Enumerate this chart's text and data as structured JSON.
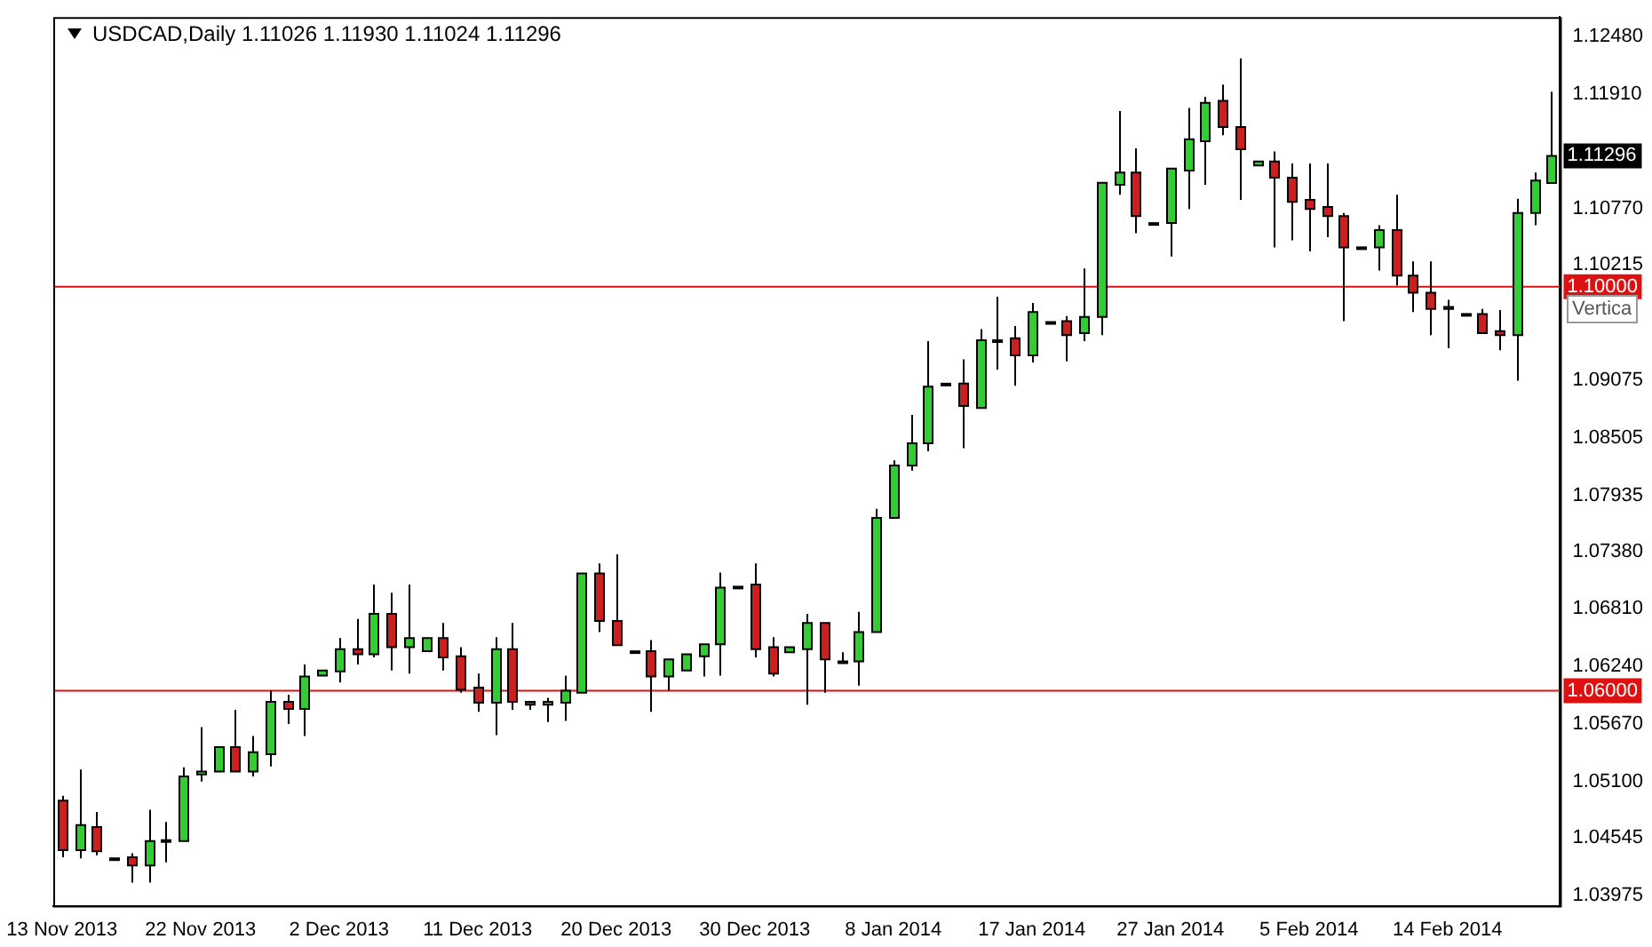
{
  "chart_data": {
    "type": "candlestick",
    "title": "USDCAD,Daily  1.11026 1.11930 1.11024 1.11296",
    "categories": [
      "13 Nov 2013",
      null,
      null,
      null,
      null,
      null,
      null,
      null,
      "22 Nov 2013",
      null,
      null,
      null,
      null,
      null,
      null,
      null,
      "2 Dec 2013",
      null,
      null,
      null,
      null,
      null,
      null,
      null,
      "11 Dec 2013",
      null,
      null,
      null,
      null,
      null,
      null,
      null,
      "20 Dec 2013",
      null,
      null,
      null,
      null,
      null,
      null,
      null,
      "30 Dec 2013",
      null,
      null,
      null,
      null,
      null,
      null,
      null,
      "8 Jan 2014",
      null,
      null,
      null,
      null,
      null,
      null,
      null,
      "17 Jan 2014",
      null,
      null,
      null,
      null,
      null,
      null,
      null,
      "27 Jan 2014",
      null,
      null,
      null,
      null,
      null,
      null,
      null,
      "5 Feb 2014",
      null,
      null,
      null,
      null,
      null,
      null,
      null,
      "14 Feb 2014",
      null,
      null,
      null,
      null,
      null,
      null
    ],
    "ohlc": [
      [
        1.0491,
        1.0496,
        1.0435,
        1.0442
      ],
      [
        1.0442,
        1.0522,
        1.0434,
        1.0467
      ],
      [
        1.0465,
        1.048,
        1.0437,
        1.0441
      ],
      [
        1.0434,
        1.0435,
        1.0432,
        1.0433
      ],
      [
        1.0435,
        1.0439,
        1.041,
        1.0427
      ],
      [
        1.0427,
        1.0482,
        1.041,
        1.0451
      ],
      [
        1.0451,
        1.047,
        1.043,
        1.0452
      ],
      [
        1.0451,
        1.0524,
        1.0449,
        1.0515
      ],
      [
        1.0517,
        1.0564,
        1.051,
        1.052
      ],
      [
        1.052,
        1.0544,
        1.052,
        1.0544
      ],
      [
        1.0544,
        1.0581,
        1.052,
        1.052
      ],
      [
        1.052,
        1.0555,
        1.0515,
        1.0539
      ],
      [
        1.0537,
        1.06,
        1.0525,
        1.0589
      ],
      [
        1.0589,
        1.0596,
        1.0567,
        1.0582
      ],
      [
        1.0582,
        1.0626,
        1.0555,
        1.0614
      ],
      [
        1.0615,
        1.0622,
        1.0615,
        1.062
      ],
      [
        1.0619,
        1.0652,
        1.0608,
        1.0641
      ],
      [
        1.0641,
        1.0671,
        1.0626,
        1.0636
      ],
      [
        1.0636,
        1.0705,
        1.0633,
        1.0676
      ],
      [
        1.0676,
        1.0697,
        1.062,
        1.0643
      ],
      [
        1.0643,
        1.0705,
        1.0617,
        1.0652
      ],
      [
        1.0639,
        1.0653,
        1.0639,
        1.0652
      ],
      [
        1.0652,
        1.0667,
        1.062,
        1.0633
      ],
      [
        1.0634,
        1.0643,
        1.0598,
        1.0601
      ],
      [
        1.0603,
        1.0617,
        1.0579,
        1.0588
      ],
      [
        1.0588,
        1.0653,
        1.0556,
        1.0641
      ],
      [
        1.0641,
        1.0667,
        1.0581,
        1.0589
      ],
      [
        1.0589,
        1.0589,
        1.0581,
        1.0586
      ],
      [
        1.0586,
        1.0593,
        1.0569,
        1.0589
      ],
      [
        1.0588,
        1.0615,
        1.057,
        1.06
      ],
      [
        1.0598,
        1.0717,
        1.0598,
        1.0716
      ],
      [
        1.0716,
        1.0726,
        1.0658,
        1.0669
      ],
      [
        1.0669,
        1.0735,
        1.0645,
        1.0645
      ],
      [
        1.0639,
        1.0641,
        1.0638,
        1.0639
      ],
      [
        1.0639,
        1.065,
        1.0579,
        1.0614
      ],
      [
        1.0614,
        1.0633,
        1.06,
        1.0631
      ],
      [
        1.062,
        1.0636,
        1.062,
        1.0636
      ],
      [
        1.0634,
        1.0646,
        1.0614,
        1.0646
      ],
      [
        1.0646,
        1.0717,
        1.0615,
        1.0702
      ],
      [
        1.0703,
        1.0705,
        1.0703,
        1.0703
      ],
      [
        1.0705,
        1.0726,
        1.0633,
        1.0641
      ],
      [
        1.0643,
        1.0653,
        1.0614,
        1.0617
      ],
      [
        1.0638,
        1.0643,
        1.0638,
        1.0643
      ],
      [
        1.0641,
        1.0676,
        1.0586,
        1.0667
      ],
      [
        1.0667,
        1.0667,
        1.0598,
        1.0631
      ],
      [
        1.0629,
        1.0638,
        1.0629,
        1.0629
      ],
      [
        1.0629,
        1.0678,
        1.0605,
        1.0658
      ],
      [
        1.0658,
        1.078,
        1.0658,
        1.0771
      ],
      [
        1.0771,
        1.0828,
        1.0769,
        1.0823
      ],
      [
        1.0823,
        1.0873,
        1.0818,
        1.0845
      ],
      [
        1.0845,
        1.0946,
        1.0837,
        1.0901
      ],
      [
        1.0904,
        1.0906,
        1.0902,
        1.0904
      ],
      [
        1.0904,
        1.0928,
        1.084,
        1.0882
      ],
      [
        1.088,
        1.0958,
        1.0878,
        1.0947
      ],
      [
        1.0947,
        1.099,
        1.0918,
        1.0947
      ],
      [
        1.0949,
        1.0961,
        1.0902,
        1.0932
      ],
      [
        1.0932,
        1.0984,
        1.0925,
        1.0975
      ],
      [
        1.0965,
        1.0966,
        1.0963,
        1.0965
      ],
      [
        1.0966,
        1.0971,
        1.0926,
        1.0952
      ],
      [
        1.0954,
        1.1018,
        1.0946,
        1.097
      ],
      [
        1.097,
        1.1103,
        1.0952,
        1.1103
      ],
      [
        1.1101,
        1.1174,
        1.1091,
        1.1113
      ],
      [
        1.1113,
        1.1137,
        1.1053,
        1.107
      ],
      [
        1.1063,
        1.1065,
        1.1061,
        1.1063
      ],
      [
        1.1063,
        1.1118,
        1.103,
        1.1117
      ],
      [
        1.1115,
        1.1177,
        1.1077,
        1.1146
      ],
      [
        1.1144,
        1.1188,
        1.1101,
        1.1182
      ],
      [
        1.1184,
        1.12,
        1.115,
        1.1158
      ],
      [
        1.1158,
        1.1226,
        1.1086,
        1.1136
      ],
      [
        1.112,
        1.1124,
        1.112,
        1.1124
      ],
      [
        1.1124,
        1.1134,
        1.1039,
        1.1108
      ],
      [
        1.1108,
        1.1122,
        1.1046,
        1.1084
      ],
      [
        1.1086,
        1.1122,
        1.1035,
        1.1077
      ],
      [
        1.1079,
        1.1122,
        1.1049,
        1.107
      ],
      [
        1.107,
        1.1073,
        1.0966,
        1.1039
      ],
      [
        1.1039,
        1.1041,
        1.1037,
        1.1039
      ],
      [
        1.1039,
        1.1061,
        1.1016,
        1.1056
      ],
      [
        1.1056,
        1.1091,
        1.1001,
        1.1011
      ],
      [
        1.1011,
        1.1025,
        1.0975,
        1.0994
      ],
      [
        1.0994,
        1.1025,
        1.0952,
        1.0978
      ],
      [
        1.0978,
        1.0987,
        1.0939,
        1.098
      ],
      [
        1.0973,
        1.0974,
        1.0972,
        1.0973
      ],
      [
        1.0973,
        1.0978,
        1.0952,
        1.0954
      ],
      [
        1.0956,
        1.0977,
        1.0937,
        1.0952
      ],
      [
        1.0952,
        1.1087,
        1.0907,
        1.1073
      ],
      [
        1.1073,
        1.1113,
        1.1061,
        1.1105
      ],
      [
        1.11026,
        1.1193,
        1.11024,
        1.11296
      ]
    ],
    "colors": [
      "#cc2020",
      "#33cc33",
      "#cc2020",
      "#cc2020",
      "#cc2020",
      "#33cc33",
      "#33cc33",
      "#33cc33",
      "#33cc33",
      "#33cc33",
      "#cc2020",
      "#33cc33",
      "#33cc33",
      "#cc2020",
      "#33cc33",
      "#33cc33",
      "#33cc33",
      "#cc2020",
      "#33cc33",
      "#cc2020",
      "#33cc33",
      "#33cc33",
      "#cc2020",
      "#cc2020",
      "#cc2020",
      "#33cc33",
      "#cc2020",
      "#cc2020",
      "#33cc33",
      "#33cc33",
      "#33cc33",
      "#cc2020",
      "#cc2020",
      "#33cc33",
      "#cc2020",
      "#33cc33",
      "#33cc33",
      "#33cc33",
      "#33cc33",
      "#33cc33",
      "#cc2020",
      "#cc2020",
      "#33cc33",
      "#33cc33",
      "#cc2020",
      "#33cc33",
      "#33cc33",
      "#33cc33",
      "#33cc33",
      "#33cc33",
      "#33cc33",
      "#33cc33",
      "#cc2020",
      "#33cc33",
      "#33cc33",
      "#cc2020",
      "#33cc33",
      "#33cc33",
      "#cc2020",
      "#33cc33",
      "#33cc33",
      "#33cc33",
      "#cc2020",
      "#33cc33",
      "#33cc33",
      "#33cc33",
      "#33cc33",
      "#cc2020",
      "#cc2020",
      "#33cc33",
      "#cc2020",
      "#cc2020",
      "#cc2020",
      "#cc2020",
      "#cc2020",
      "#33cc33",
      "#33cc33",
      "#cc2020",
      "#cc2020",
      "#cc2020",
      "#33cc33",
      "#33cc33",
      "#cc2020",
      "#cc2020",
      "#33cc33",
      "#33cc33",
      "#33cc33"
    ],
    "ylim": [
      1.0387,
      1.1267
    ],
    "yticks": [
      {
        "value": 1.1248,
        "label": "1.12480"
      },
      {
        "value": 1.1191,
        "label": "1.11910"
      },
      {
        "value": 1.1077,
        "label": "1.10770"
      },
      {
        "value": 1.10215,
        "label": "1.10215"
      },
      {
        "value": 1.09075,
        "label": "1.09075"
      },
      {
        "value": 1.08505,
        "label": "1.08505"
      },
      {
        "value": 1.07935,
        "label": "1.07935"
      },
      {
        "value": 1.0738,
        "label": "1.07380"
      },
      {
        "value": 1.0681,
        "label": "1.06810"
      },
      {
        "value": 1.0624,
        "label": "1.06240"
      },
      {
        "value": 1.0567,
        "label": "1.05670"
      },
      {
        "value": 1.051,
        "label": "1.05100"
      },
      {
        "value": 1.04545,
        "label": "1.04545"
      },
      {
        "value": 1.03975,
        "label": "1.03975"
      }
    ],
    "ref_lines": [
      {
        "axis": "y",
        "value": 1.1,
        "label": "1.10000",
        "color": "#dd1111"
      },
      {
        "axis": "y",
        "value": 1.06,
        "label": "1.06000",
        "color": "#dd1111"
      }
    ],
    "annotations": [
      {
        "text": "1.11296",
        "y": 1.11296
      },
      "Vertica"
    ],
    "grid": false,
    "legend": false
  }
}
